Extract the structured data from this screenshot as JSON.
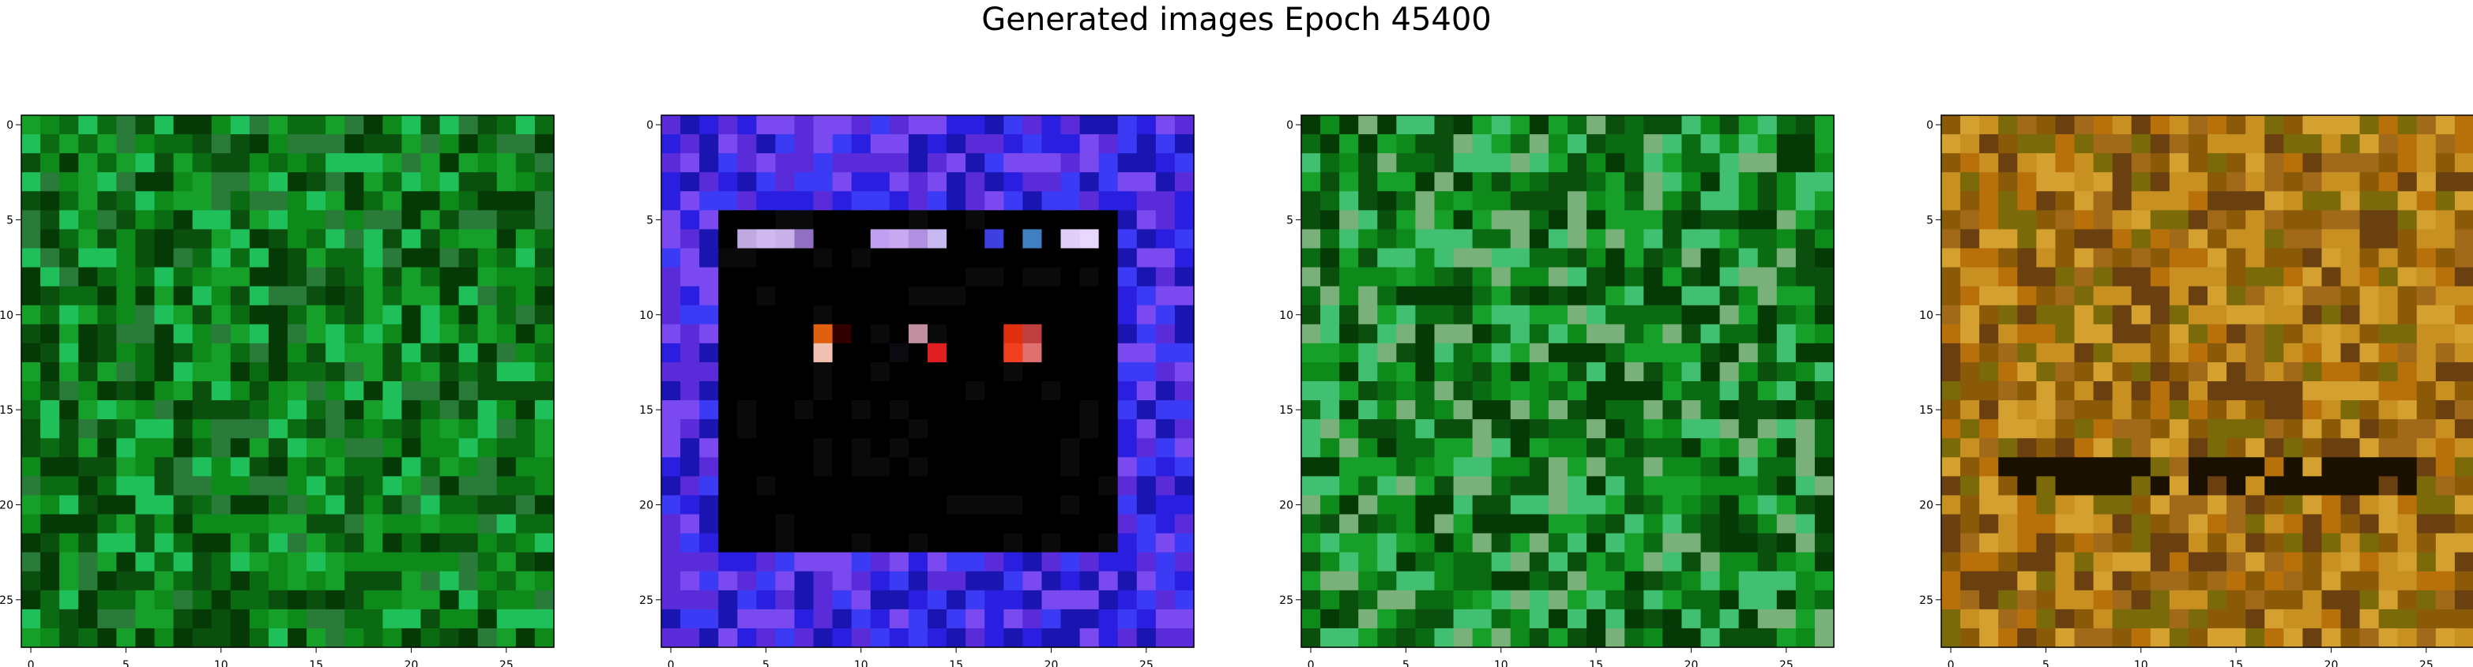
{
  "figure": {
    "title": "Generated images Epoch 45400"
  },
  "chart_data": [
    {
      "type": "heatmap",
      "panel": 1,
      "description": "28x28 RGB generated image, predominantly green noise",
      "palette": [
        "#0b6b12",
        "#0e8a1a",
        "#16a02a",
        "#0a4f0d",
        "#1fbf5a",
        "#2a7a3a",
        "#053a07"
      ],
      "size": [
        28,
        28
      ],
      "xlim": [
        -0.5,
        27.5
      ],
      "ylim": [
        27.5,
        -0.5
      ],
      "xticks": [
        0,
        5,
        10,
        15,
        20,
        25
      ],
      "yticks": [
        0,
        5,
        10,
        15,
        20,
        25
      ]
    },
    {
      "type": "heatmap",
      "panel": 2,
      "description": "28x28 RGB generated image, blue/purple border with black center and small red/pink/lavender spots",
      "palette": [
        "#2a1fe0",
        "#3b3bf5",
        "#5a2bd8",
        "#1a14b0",
        "#7a4af0",
        "#000000"
      ],
      "size": [
        28,
        28
      ],
      "xlim": [
        -0.5,
        27.5
      ],
      "ylim": [
        27.5,
        -0.5
      ],
      "xticks": [
        0,
        5,
        10,
        15,
        20,
        25
      ],
      "yticks": [
        0,
        5,
        10,
        15,
        20,
        25
      ]
    },
    {
      "type": "heatmap",
      "panel": 3,
      "description": "28x28 RGB generated image, green noise with lighter green/pinkish patch upper right",
      "palette": [
        "#0b6b12",
        "#0e8a1a",
        "#16a02a",
        "#0a4f0d",
        "#40c070",
        "#7ab07a",
        "#053a07"
      ],
      "size": [
        28,
        28
      ],
      "xlim": [
        -0.5,
        27.5
      ],
      "ylim": [
        27.5,
        -0.5
      ],
      "xticks": [
        0,
        5,
        10,
        15,
        20,
        25
      ],
      "yticks": [
        0,
        5,
        10,
        15,
        20,
        25
      ]
    },
    {
      "type": "heatmap",
      "panel": 4,
      "description": "28x28 RGB generated image, brown/orange/olive noise with a dark horizontal band near row 19",
      "palette": [
        "#b8700a",
        "#8a5a08",
        "#c89020",
        "#6a4010",
        "#a06a1a",
        "#d4a030",
        "#7a6a0a"
      ],
      "size": [
        28,
        28
      ],
      "xlim": [
        -0.5,
        27.5
      ],
      "ylim": [
        27.5,
        -0.5
      ],
      "xticks": [
        0,
        5,
        10,
        15,
        20,
        25
      ],
      "yticks": [
        0,
        5,
        10,
        15,
        20,
        25
      ]
    }
  ]
}
